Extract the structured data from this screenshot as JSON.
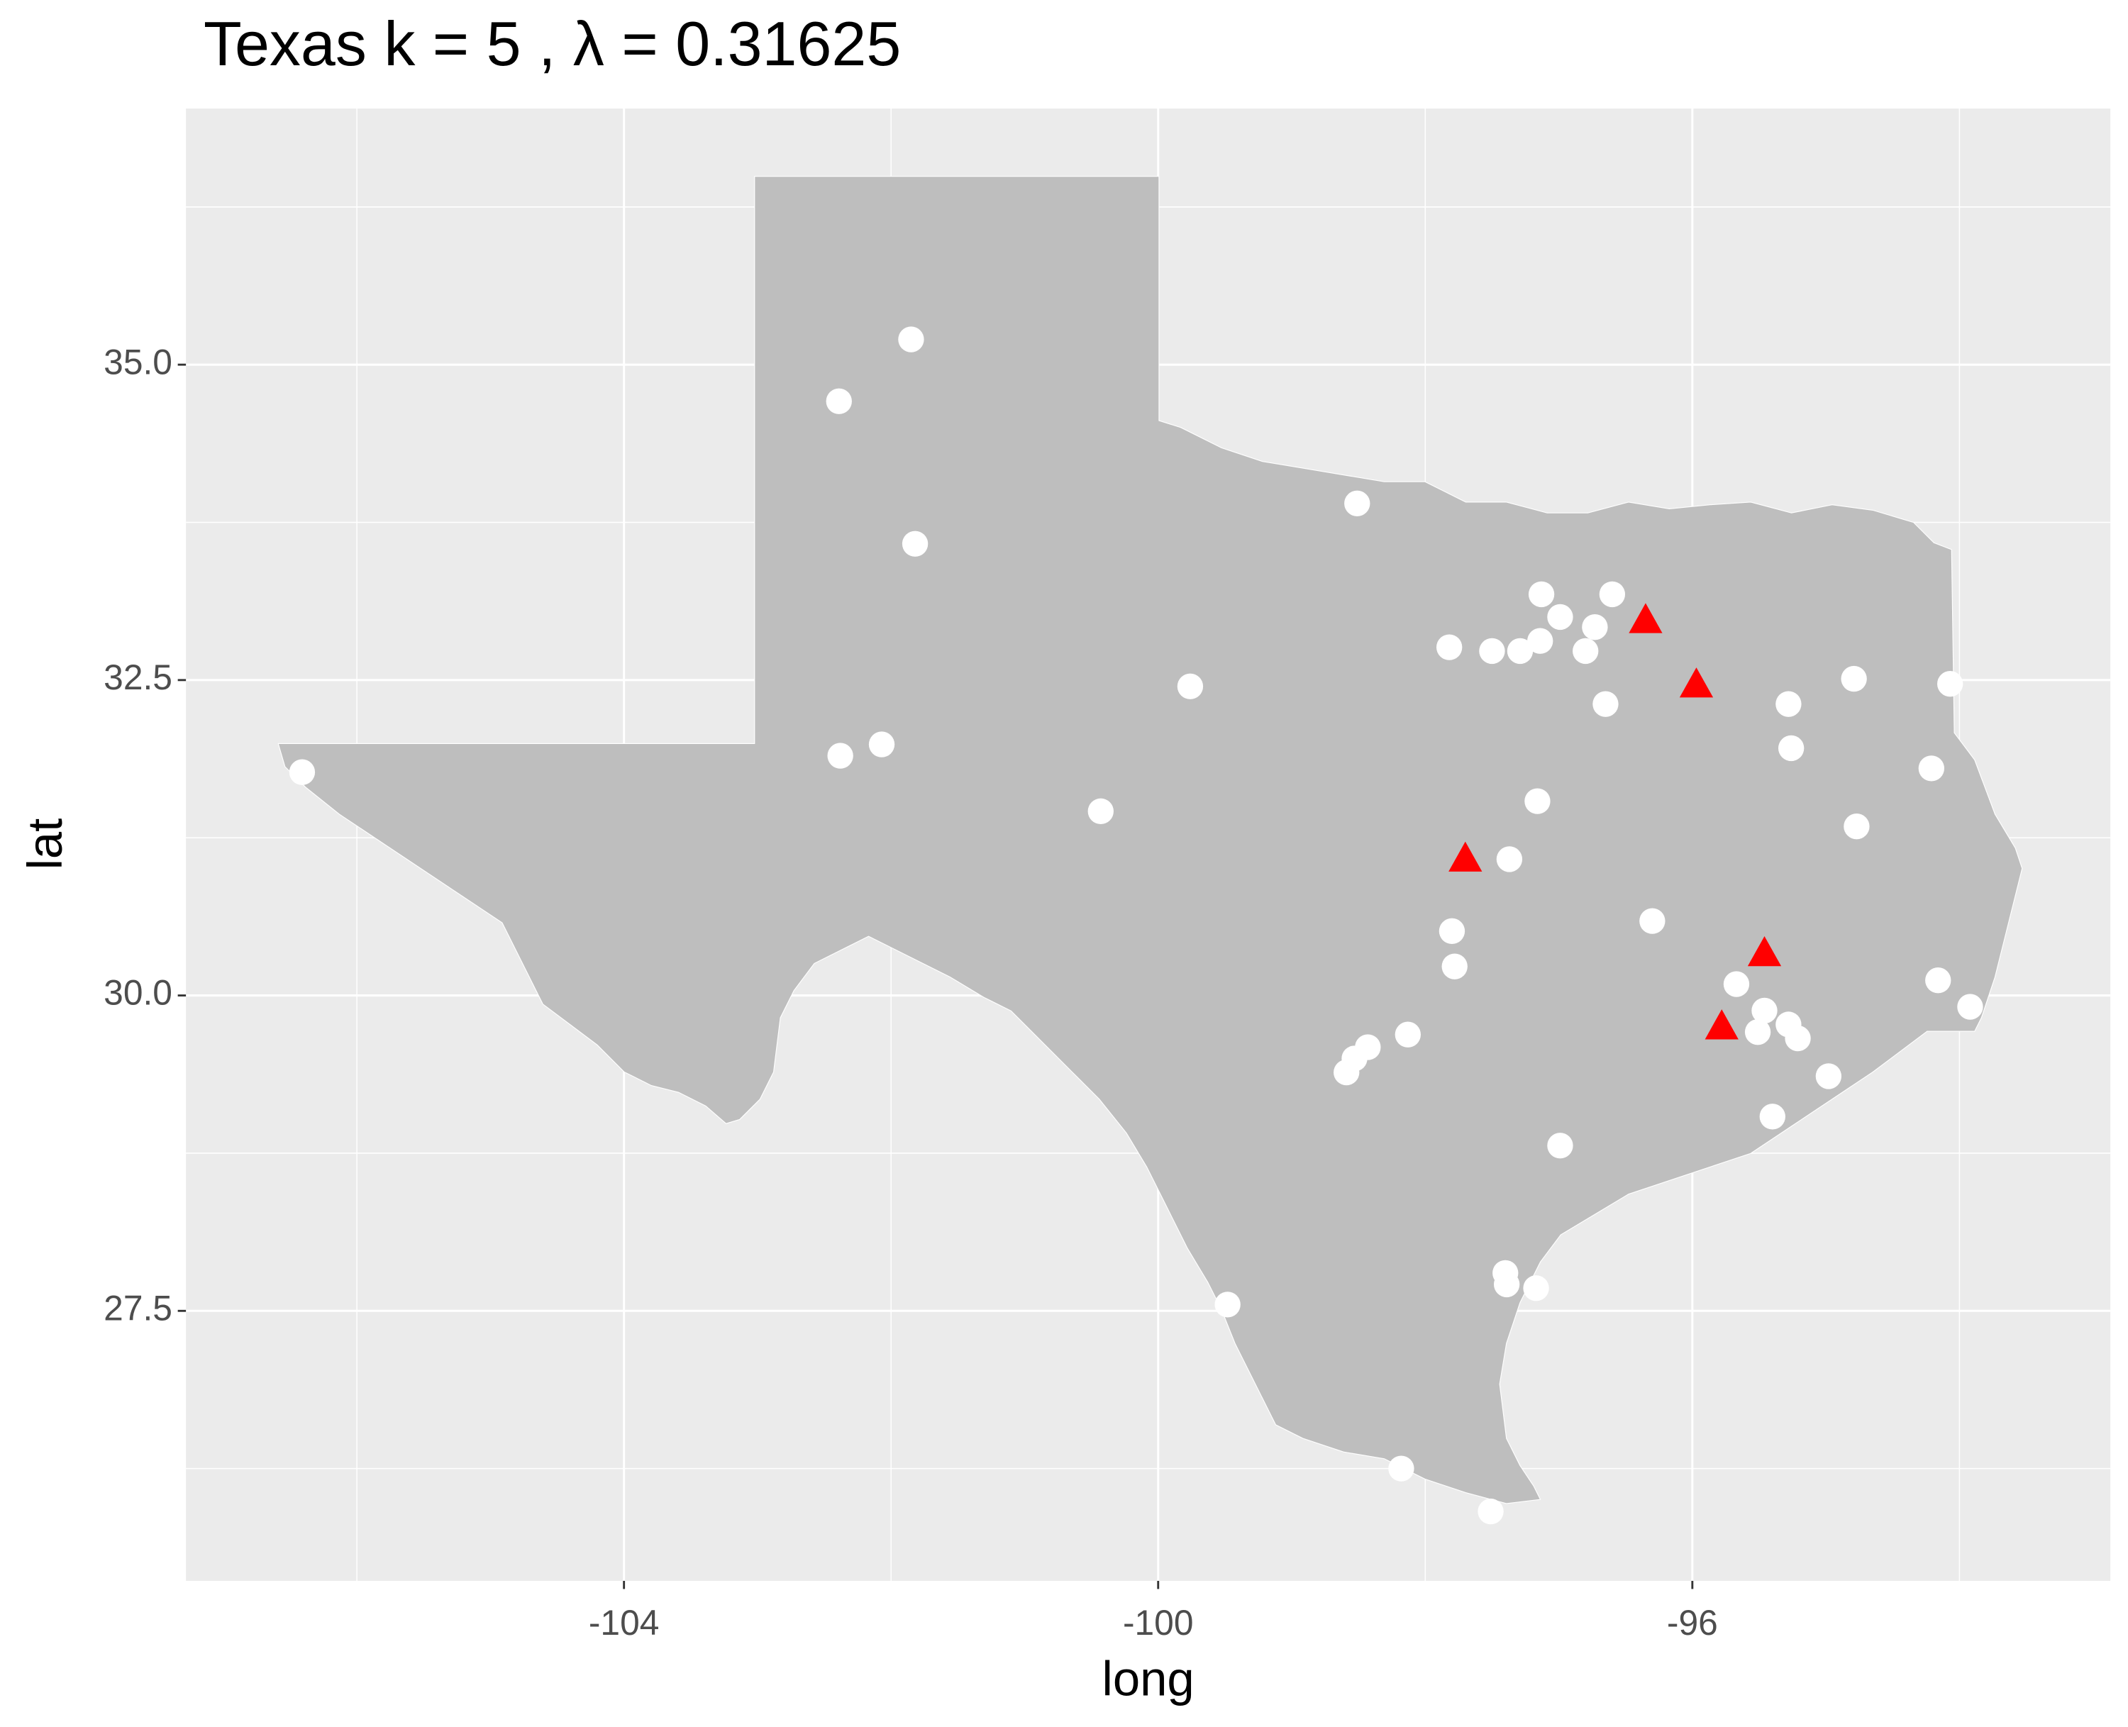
{
  "chart_data": {
    "type": "scatter",
    "title": "Texas  k =  5 ,  λ  =  0.31625",
    "x_label": "long",
    "y_label": "lat",
    "xlim": [
      -107.28,
      -92.87
    ],
    "ylim": [
      25.36,
      37.03
    ],
    "xticks": [
      -104,
      -100,
      -96
    ],
    "yticks": [
      27.5,
      {
        "value": 30,
        "label": "30.0"
      },
      32.5,
      {
        "value": 35,
        "label": "35.0"
      }
    ],
    "grid": true,
    "series": [
      {
        "color": "#ffffff",
        "marker": "circle",
        "x": [
          -106.41,
          -101.85,
          -102.39,
          -101.82,
          -102.07,
          -102.38,
          -99.76,
          -100.43,
          -98.51,
          -97.82,
          -97.13,
          -97.5,
          -97.29,
          -97.14,
          -96.99,
          -96.8,
          -96.73,
          -96.6,
          -96.65,
          -97.16,
          -97.37,
          -96.3,
          -94.79,
          -95.28,
          -95.26,
          -94.07,
          -94.21,
          -94.77,
          -97.8,
          -97.78,
          -98.53,
          -98.43,
          -98.59,
          -98.13,
          -96.99,
          -95.67,
          -95.46,
          -95.28,
          -95.21,
          -95.51,
          -95.4,
          -94.98,
          -94.16,
          -93.92,
          -97.4,
          -97.39,
          -97.17,
          -99.48,
          -98.18,
          -97.51
        ],
        "y": [
          31.77,
          35.2,
          34.71,
          33.58,
          31.99,
          31.9,
          32.45,
          31.46,
          33.9,
          32.76,
          33.18,
          32.73,
          32.73,
          32.81,
          33.0,
          32.73,
          32.92,
          33.18,
          32.31,
          31.54,
          31.08,
          30.59,
          32.51,
          32.31,
          31.96,
          32.47,
          31.8,
          31.34,
          30.51,
          30.23,
          29.5,
          29.59,
          29.39,
          29.69,
          28.81,
          30.09,
          29.88,
          29.77,
          29.66,
          29.71,
          29.04,
          29.36,
          30.12,
          29.91,
          27.8,
          27.71,
          27.68,
          27.55,
          26.25,
          25.91
        ]
      },
      {
        "color": "#ff0000",
        "marker": "triangle",
        "x": [
          -96.35,
          -95.97,
          -97.7,
          -95.46,
          -95.78
        ],
        "y": [
          32.97,
          32.46,
          31.08,
          30.33,
          29.75
        ]
      }
    ]
  }
}
